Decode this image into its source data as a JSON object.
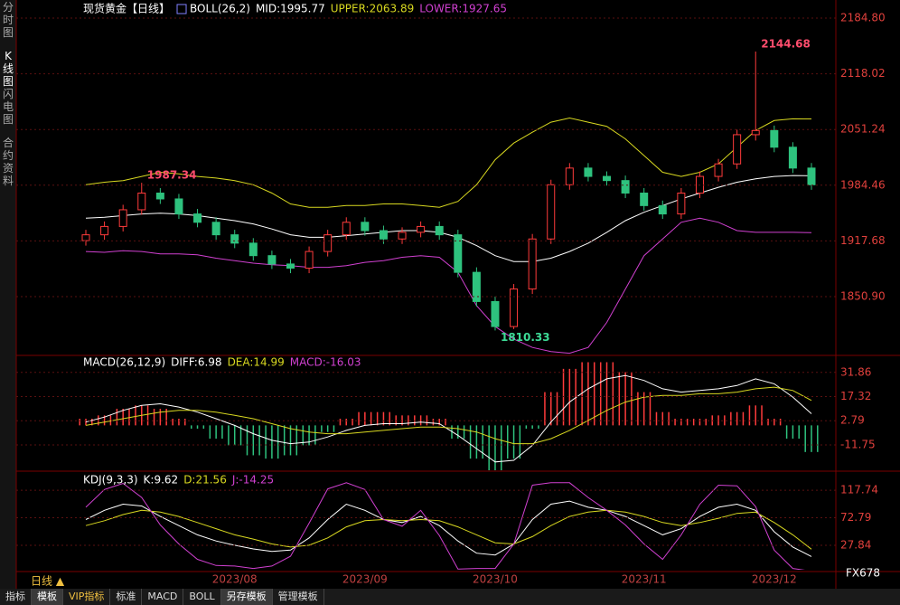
{
  "sidebar": [
    "分时图",
    "K线图",
    "闪电图",
    "合约资料"
  ],
  "period_label": "日线 ▲",
  "watermark": "FX678",
  "tabs": [
    "指标",
    "模板",
    "VIP指标",
    "标准",
    "MACD",
    "BOLL",
    "另存模板",
    "管理模板"
  ],
  "chart_data": [
    {
      "type": "candlestick",
      "title": "现货黄金【日线】",
      "legend": [
        {
          "text": "BOLL(26,2)",
          "color": "#ffffff"
        },
        {
          "text": "MID:1995.77",
          "color": "#ffffff"
        },
        {
          "text": "UPPER:2063.89",
          "color": "#d8d820"
        },
        {
          "text": "LOWER:1927.65",
          "color": "#d040d0"
        }
      ],
      "up_color": "#ff3b3b",
      "down_color": "#2ec27e",
      "categories": [
        null,
        null,
        null,
        null,
        null,
        null,
        null,
        null,
        "2023/08",
        null,
        null,
        null,
        null,
        null,
        null,
        "2023/09",
        null,
        null,
        null,
        null,
        null,
        null,
        "2023/10",
        null,
        null,
        null,
        null,
        null,
        null,
        null,
        "2023/11",
        null,
        null,
        null,
        null,
        null,
        null,
        "2023/12",
        null,
        null
      ],
      "ohlc": [
        [
          1918,
          1931,
          1912,
          1925
        ],
        [
          1925,
          1941,
          1919,
          1935
        ],
        [
          1935,
          1961,
          1929,
          1955
        ],
        [
          1955,
          1987.34,
          1949,
          1975
        ],
        [
          1975,
          1981,
          1962,
          1968
        ],
        [
          1968,
          1974,
          1944,
          1950
        ],
        [
          1950,
          1956,
          1934,
          1940
        ],
        [
          1940,
          1946,
          1919,
          1925
        ],
        [
          1925,
          1931,
          1909,
          1915
        ],
        [
          1915,
          1921,
          1894,
          1900
        ],
        [
          1900,
          1906,
          1884,
          1890
        ],
        [
          1890,
          1896,
          1879,
          1885
        ],
        [
          1885,
          1911,
          1879,
          1905
        ],
        [
          1905,
          1931,
          1899,
          1925
        ],
        [
          1925,
          1946,
          1919,
          1940
        ],
        [
          1940,
          1946,
          1924,
          1930
        ],
        [
          1930,
          1936,
          1914,
          1920
        ],
        [
          1920,
          1934,
          1914,
          1928
        ],
        [
          1928,
          1941,
          1922,
          1935
        ],
        [
          1935,
          1941,
          1919,
          1925
        ],
        [
          1925,
          1931,
          1874,
          1880
        ],
        [
          1880,
          1886,
          1839,
          1845
        ],
        [
          1845,
          1851,
          1810.33,
          1815
        ],
        [
          1815,
          1866,
          1812,
          1860
        ],
        [
          1860,
          1926,
          1854,
          1920
        ],
        [
          1920,
          1991,
          1914,
          1985
        ],
        [
          1985,
          2011,
          1979,
          2005
        ],
        [
          2005,
          2011,
          1989,
          1995
        ],
        [
          1995,
          2001,
          1984,
          1990
        ],
        [
          1990,
          1996,
          1969,
          1975
        ],
        [
          1975,
          1981,
          1954,
          1960
        ],
        [
          1960,
          1966,
          1944,
          1950
        ],
        [
          1950,
          1981,
          1944,
          1975
        ],
        [
          1975,
          2001,
          1969,
          1995
        ],
        [
          1995,
          2016,
          1989,
          2010
        ],
        [
          2010,
          2051,
          2004,
          2045
        ],
        [
          2045,
          2144.68,
          2038,
          2050
        ],
        [
          2050,
          2056,
          2024,
          2030
        ],
        [
          2030,
          2036,
          1999,
          2005
        ],
        [
          2005,
          2011,
          1979,
          1985
        ]
      ],
      "series": [
        {
          "color": "#ffffff",
          "values": [
            1945,
            1946,
            1948,
            1950,
            1951,
            1950,
            1948,
            1945,
            1942,
            1938,
            1932,
            1925,
            1922,
            1922,
            1924,
            1926,
            1928,
            1930,
            1930,
            1928,
            1922,
            1912,
            1900,
            1893,
            1893,
            1897,
            1905,
            1915,
            1928,
            1942,
            1952,
            1960,
            1968,
            1975,
            1982,
            1988,
            1992,
            1995,
            1996,
            1995.77
          ]
        },
        {
          "color": "#d8d820",
          "values": [
            1985,
            1988,
            1990,
            1995,
            2000,
            1998,
            1995,
            1993,
            1990,
            1985,
            1975,
            1962,
            1958,
            1958,
            1960,
            1960,
            1962,
            1962,
            1960,
            1958,
            1965,
            1985,
            2015,
            2035,
            2048,
            2060,
            2065,
            2060,
            2055,
            2040,
            2020,
            2000,
            1995,
            2000,
            2010,
            2030,
            2050,
            2062,
            2064,
            2063.89
          ]
        },
        {
          "color": "#d040d0",
          "values": [
            1905,
            1904,
            1906,
            1905,
            1902,
            1902,
            1901,
            1897,
            1894,
            1891,
            1889,
            1888,
            1886,
            1886,
            1888,
            1892,
            1894,
            1898,
            1900,
            1898,
            1880,
            1840,
            1815,
            1800,
            1790,
            1785,
            1783,
            1790,
            1820,
            1860,
            1900,
            1920,
            1940,
            1945,
            1940,
            1930,
            1928,
            1928,
            1928,
            1927.65
          ]
        }
      ],
      "annotations": [
        {
          "index": 3,
          "field": 1,
          "color": "#ff4d6d"
        },
        {
          "index": 22,
          "field": 2,
          "color": "#3ddc97"
        },
        {
          "index": 36,
          "field": 1,
          "color": "#ff4d6d"
        }
      ],
      "ylim": [
        1781.5,
        2197.8
      ],
      "yticks": [
        {
          "value": 2184.8,
          "label": "2184.80"
        },
        2118.02,
        2051.24,
        1984.46,
        1917.68,
        {
          "value": 1850.9,
          "label": "1850.90"
        }
      ],
      "grid": true
    },
    {
      "type": "macd",
      "legend": [
        {
          "text": "MACD(26,12,9)",
          "color": "#ffffff"
        },
        {
          "text": "DIFF:6.98",
          "color": "#ffffff"
        },
        {
          "text": "DEA:14.99",
          "color": "#d8d820"
        },
        {
          "text": "MACD:-16.03",
          "color": "#d040d0"
        }
      ],
      "histogram": [
        4,
        6,
        10,
        12,
        10,
        4,
        -2,
        -8,
        -12,
        -18,
        -20,
        -18,
        -12,
        -4,
        4,
        8,
        8,
        6,
        6,
        4,
        -8,
        -20,
        -28,
        -20,
        -2,
        20,
        34,
        38,
        38,
        32,
        20,
        8,
        4,
        4,
        6,
        8,
        12,
        4,
        -8,
        -16.03
      ],
      "up_color": "#ff3b3b",
      "down_color": "#2ec27e",
      "series": [
        {
          "color": "#ffffff",
          "values": [
            2,
            5,
            9,
            12,
            13,
            11,
            8,
            4,
            0,
            -5,
            -9,
            -11,
            -10,
            -7,
            -3,
            0,
            1,
            1,
            2,
            1,
            -6,
            -14,
            -22,
            -21,
            -12,
            2,
            14,
            22,
            28,
            30,
            27,
            22,
            20,
            21,
            22,
            24,
            28,
            25,
            17,
            6.98
          ]
        },
        {
          "color": "#d8d820",
          "values": [
            0,
            2,
            4,
            6,
            8,
            9,
            9,
            8,
            6,
            4,
            1,
            -2,
            -4,
            -5,
            -5,
            -4,
            -3,
            -2,
            -1,
            -1,
            -2,
            -4,
            -8,
            -11,
            -11,
            -8,
            -3,
            3,
            9,
            14,
            17,
            18,
            18,
            19,
            19,
            20,
            22,
            23,
            21,
            14.99
          ]
        }
      ],
      "ylim": [
        -27,
        41
      ],
      "yticks": [
        31.86,
        17.32,
        2.79,
        -11.75
      ],
      "grid": true
    },
    {
      "type": "line",
      "legend": [
        {
          "text": "KDJ(9,3,3)",
          "color": "#ffffff"
        },
        {
          "text": "K:9.62",
          "color": "#ffffff"
        },
        {
          "text": "D:21.56",
          "color": "#d8d820"
        },
        {
          "text": "J:-14.25",
          "color": "#d040d0"
        }
      ],
      "series": [
        {
          "color": "#ffffff",
          "values": [
            70,
            85,
            95,
            92,
            75,
            60,
            45,
            35,
            28,
            22,
            18,
            20,
            40,
            70,
            95,
            85,
            70,
            65,
            75,
            60,
            35,
            15,
            12,
            30,
            70,
            95,
            100,
            90,
            85,
            75,
            60,
            45,
            55,
            75,
            90,
            95,
            85,
            50,
            25,
            9.62
          ]
        },
        {
          "color": "#d8d820",
          "values": [
            60,
            68,
            78,
            85,
            82,
            75,
            65,
            55,
            45,
            38,
            30,
            25,
            28,
            40,
            58,
            68,
            70,
            68,
            70,
            68,
            58,
            45,
            32,
            30,
            42,
            60,
            75,
            82,
            85,
            82,
            75,
            65,
            60,
            65,
            72,
            80,
            82,
            65,
            45,
            21.56
          ]
        },
        {
          "color": "#d040d0",
          "values": [
            90,
            119,
            129,
            106,
            61,
            30,
            5,
            -5,
            -6,
            -10,
            -6,
            10,
            64,
            120,
            130,
            119,
            70,
            59,
            85,
            44,
            -11,
            -10,
            -10,
            30,
            126,
            130,
            130,
            106,
            85,
            61,
            30,
            5,
            45,
            95,
            126,
            125,
            91,
            20,
            -10,
            -14.25
          ]
        }
      ],
      "ylim": [
        -12,
        143
      ],
      "yticks": [
        117.74,
        72.79,
        27.84
      ],
      "grid": true
    }
  ]
}
